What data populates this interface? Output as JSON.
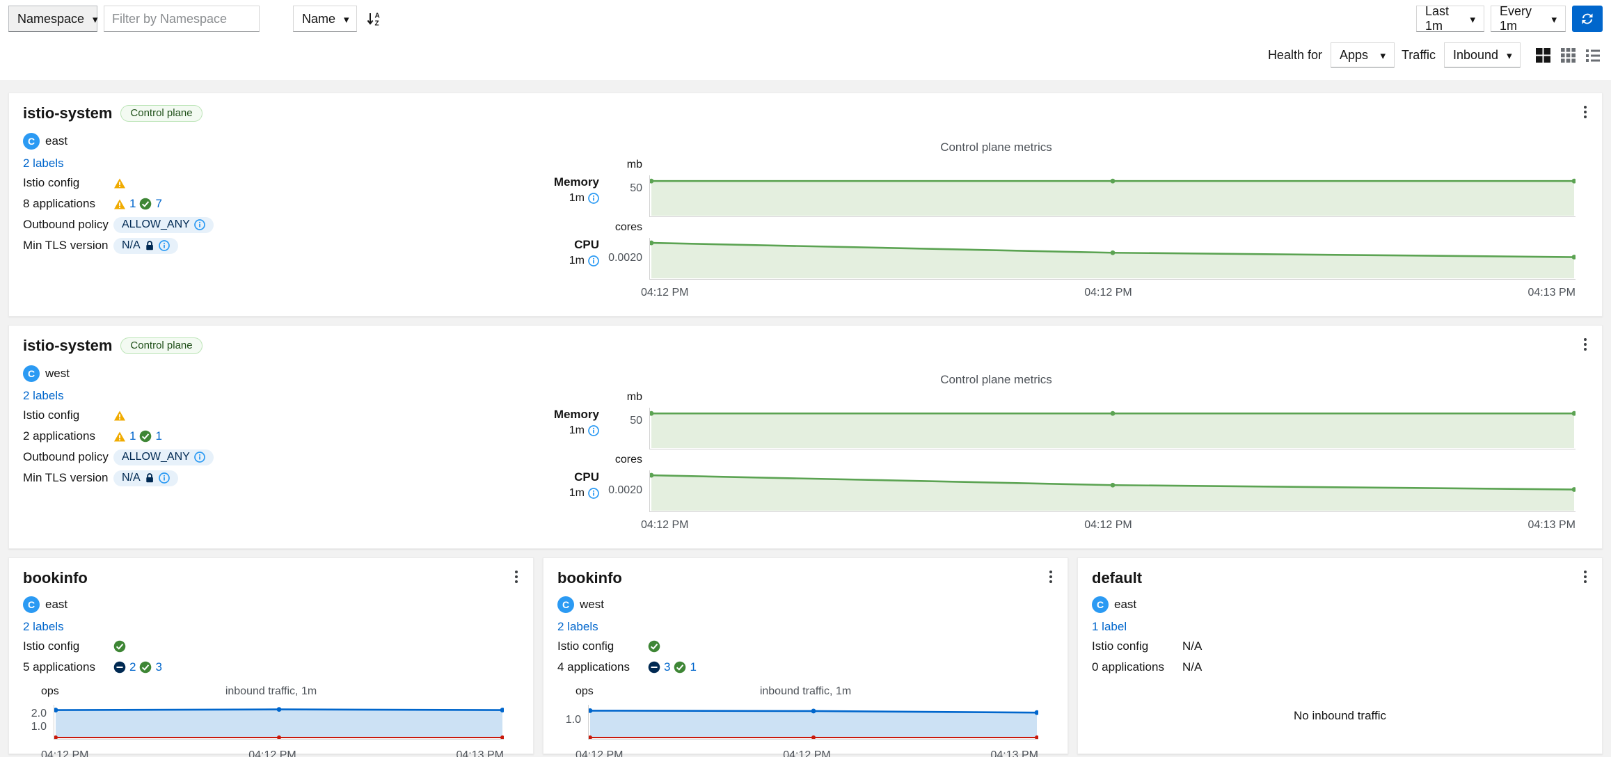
{
  "toolbar": {
    "namespace_select": "Namespace",
    "filter_placeholder": "Filter by Namespace",
    "sort_by_select": "Name",
    "duration_select": "Last 1m",
    "refresh_interval_select": "Every 1m",
    "health_for_label": "Health for",
    "health_for_select": "Apps",
    "traffic_label": "Traffic",
    "traffic_select": "Inbound"
  },
  "cluster_icon_letter": "C",
  "colors": {
    "accent_blue": "#0066cc",
    "warning_orange": "#f0ab00",
    "success_green": "#3e8635",
    "idle_navy": "#002952",
    "chart_green": "#5ba352",
    "chart_green_fill": "#e4efdf",
    "chart_blue": "#0066cc",
    "chart_blue_fill": "#cce1f4",
    "chart_red": "#c9190b"
  },
  "cards": [
    {
      "title": "istio-system",
      "badge": "Control plane",
      "cluster": "east",
      "labels_link": "2 labels",
      "istio_config_label": "Istio config",
      "applications_label": "8 applications",
      "warning_count": "1",
      "healthy_count": "7",
      "outbound_policy_label": "Outbound policy",
      "outbound_policy_value": "ALLOW_ANY",
      "min_tls_label": "Min TLS version",
      "min_tls_value": "N/A",
      "metrics_title": "Control plane metrics",
      "memory": {
        "name": "Memory",
        "duration": "1m",
        "unit": "mb",
        "tick": "50"
      },
      "cpu": {
        "name": "CPU",
        "duration": "1m",
        "unit": "cores",
        "tick": "0.0020"
      },
      "x_labels": [
        "04:12 PM",
        "04:12 PM",
        "04:13 PM"
      ]
    },
    {
      "title": "istio-system",
      "badge": "Control plane",
      "cluster": "west",
      "labels_link": "2 labels",
      "istio_config_label": "Istio config",
      "applications_label": "2 applications",
      "warning_count": "1",
      "healthy_count": "1",
      "outbound_policy_label": "Outbound policy",
      "outbound_policy_value": "ALLOW_ANY",
      "min_tls_label": "Min TLS version",
      "min_tls_value": "N/A",
      "metrics_title": "Control plane metrics",
      "memory": {
        "name": "Memory",
        "duration": "1m",
        "unit": "mb",
        "tick": "50"
      },
      "cpu": {
        "name": "CPU",
        "duration": "1m",
        "unit": "cores",
        "tick": "0.0020"
      },
      "x_labels": [
        "04:12 PM",
        "04:12 PM",
        "04:13 PM"
      ]
    },
    {
      "title": "bookinfo",
      "cluster": "east",
      "labels_link": "2 labels",
      "istio_config_label": "Istio config",
      "applications_label": "5 applications",
      "idle_count": "2",
      "healthy_count": "3",
      "traffic_title": "inbound traffic, 1m",
      "unit": "ops",
      "yticks": [
        "2.0",
        "1.0"
      ],
      "x_labels": [
        "04:12 PM",
        "04:12 PM",
        "04:13 PM"
      ]
    },
    {
      "title": "bookinfo",
      "cluster": "west",
      "labels_link": "2 labels",
      "istio_config_label": "Istio config",
      "applications_label": "4 applications",
      "idle_count": "3",
      "healthy_count": "1",
      "traffic_title": "inbound traffic, 1m",
      "unit": "ops",
      "yticks": [
        "1.0"
      ],
      "x_labels": [
        "04:12 PM",
        "04:12 PM",
        "04:13 PM"
      ]
    },
    {
      "title": "default",
      "cluster": "east",
      "labels_link": "1 label",
      "istio_config_label": "Istio config",
      "istio_config_value": "N/A",
      "applications_label": "0 applications",
      "applications_value": "N/A",
      "empty_message": "No inbound traffic"
    }
  ],
  "chart_data": [
    {
      "name": "istio-system-east-memory",
      "type": "area",
      "x": [
        "04:12 PM",
        "04:12 PM",
        "04:13 PM"
      ],
      "values": [
        62,
        62,
        62
      ],
      "ylim": [
        0,
        72
      ],
      "yticks": [
        50
      ],
      "ylabel": "mb",
      "color": "#5ba352",
      "fill": "#e4efdf"
    },
    {
      "name": "istio-system-east-cpu",
      "type": "area",
      "x": [
        "04:12 PM",
        "04:12 PM",
        "04:13 PM"
      ],
      "values": [
        0.0033,
        0.0024,
        0.002
      ],
      "ylim": [
        0,
        0.00375
      ],
      "yticks": [
        0.002
      ],
      "ylabel": "cores",
      "color": "#5ba352",
      "fill": "#e4efdf"
    },
    {
      "name": "istio-system-west-memory",
      "type": "area",
      "x": [
        "04:12 PM",
        "04:12 PM",
        "04:13 PM"
      ],
      "values": [
        62,
        62,
        62
      ],
      "ylim": [
        0,
        72
      ],
      "yticks": [
        50
      ],
      "ylabel": "mb",
      "color": "#5ba352",
      "fill": "#e4efdf"
    },
    {
      "name": "istio-system-west-cpu",
      "type": "area",
      "x": [
        "04:12 PM",
        "04:12 PM",
        "04:13 PM"
      ],
      "values": [
        0.0033,
        0.0024,
        0.002
      ],
      "ylim": [
        0,
        0.00375
      ],
      "yticks": [
        0.002
      ],
      "ylabel": "cores",
      "color": "#5ba352",
      "fill": "#e4efdf"
    },
    {
      "name": "bookinfo-east-inbound-traffic",
      "type": "area",
      "x": [
        "04:12 PM",
        "04:12 PM",
        "04:13 PM"
      ],
      "values": [
        2.2,
        2.25,
        2.2
      ],
      "error_values": [
        0,
        0,
        0
      ],
      "ylim": [
        0,
        2.6
      ],
      "yticks": [
        2.0,
        1.0
      ],
      "ylabel": "ops",
      "color": "#0066cc",
      "fill": "#cce1f4",
      "error_color": "#c9190b"
    },
    {
      "name": "bookinfo-west-inbound-traffic",
      "type": "area",
      "x": [
        "04:12 PM",
        "04:12 PM",
        "04:13 PM"
      ],
      "values": [
        1.45,
        1.43,
        1.35
      ],
      "error_values": [
        0,
        0,
        0
      ],
      "ylim": [
        0,
        1.75
      ],
      "yticks": [
        1.0
      ],
      "ylabel": "ops",
      "color": "#0066cc",
      "fill": "#cce1f4",
      "error_color": "#c9190b"
    }
  ]
}
